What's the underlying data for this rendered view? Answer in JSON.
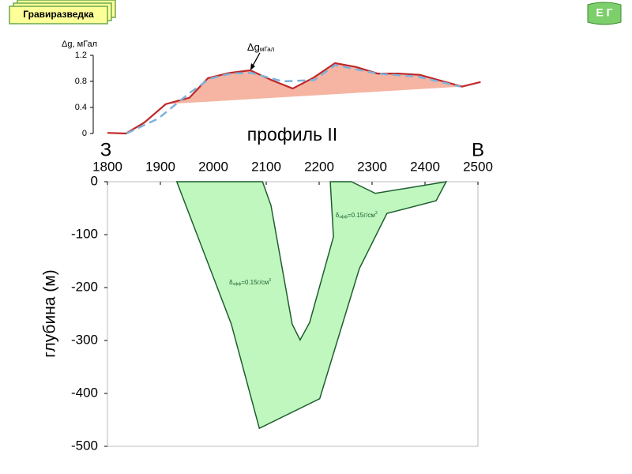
{
  "header": {
    "button": "Гравиразведка",
    "corner": "Е Г"
  },
  "chart_data": [
    {
      "type": "line",
      "ylabel": "Δg, мГал",
      "annotation": {
        "text": "Δg",
        "sub": "мГал",
        "x": 2070,
        "y": 0.97
      },
      "xlim": [
        1800,
        2500
      ],
      "ylim": [
        0,
        1.2
      ],
      "yticks": [
        0,
        0.4,
        0.8,
        1.2
      ],
      "series": [
        {
          "color": "#c0282a",
          "dash": false,
          "x": [
            1800,
            1835,
            1870,
            1910,
            1955,
            1990,
            2030,
            2070,
            2110,
            2150,
            2190,
            2230,
            2270,
            2310,
            2350,
            2390,
            2430,
            2470,
            2505
          ],
          "values": [
            0.01,
            0,
            0.17,
            0.45,
            0.55,
            0.85,
            0.93,
            0.97,
            0.82,
            0.69,
            0.86,
            1.08,
            1.02,
            0.92,
            0.92,
            0.9,
            0.81,
            0.72,
            0.79
          ]
        },
        {
          "color": "#7fb2d9",
          "dash": true,
          "x": [
            1836,
            1896,
            1955,
            1993,
            2033,
            2072,
            2131,
            2191,
            2230,
            2309,
            2388,
            2467
          ],
          "values": [
            0,
            0.23,
            0.62,
            0.84,
            0.92,
            0.93,
            0.8,
            0.82,
            1.05,
            0.92,
            0.87,
            0.72
          ]
        }
      ],
      "fill": {
        "color": "#f5b5a2",
        "x": [
          1910,
          2470
        ],
        "values": [
          0.45,
          0.72
        ]
      }
    },
    {
      "type": "polygon",
      "title": "профиль II",
      "west": "З",
      "east": "В",
      "ylabel": "глубина (м)",
      "xlim": [
        1800,
        2500
      ],
      "ylim": [
        -500,
        0
      ],
      "xticks": [
        1800,
        1900,
        2000,
        2100,
        2200,
        2300,
        2400,
        2500
      ],
      "yticks": [
        0,
        -100,
        -200,
        -300,
        -400,
        -500
      ],
      "shape": {
        "color": "#bff7bf",
        "edge": "#1e5e2e",
        "x": [
          1931,
          2093,
          2109,
          2149,
          2164,
          2182,
          2227,
          2221,
          2261,
          2306,
          2440,
          2421,
          2328,
          2276,
          2201,
          2087,
          2034
        ],
        "values": [
          0,
          0,
          -45,
          -269,
          -299,
          -266,
          -104,
          0,
          0,
          -22,
          0,
          -36,
          -60,
          -164,
          -410,
          -466,
          -269
        ]
      },
      "labels": [
        {
          "symbol": "δ",
          "sub": "эфф",
          "text": "=0.15г/см",
          "sup": "3",
          "x": 2030,
          "y": -191
        },
        {
          "symbol": "δ",
          "sub": "эфф",
          "text": "=0.15г/см",
          "sup": "3",
          "x": 2231,
          "y": -64
        }
      ]
    }
  ]
}
